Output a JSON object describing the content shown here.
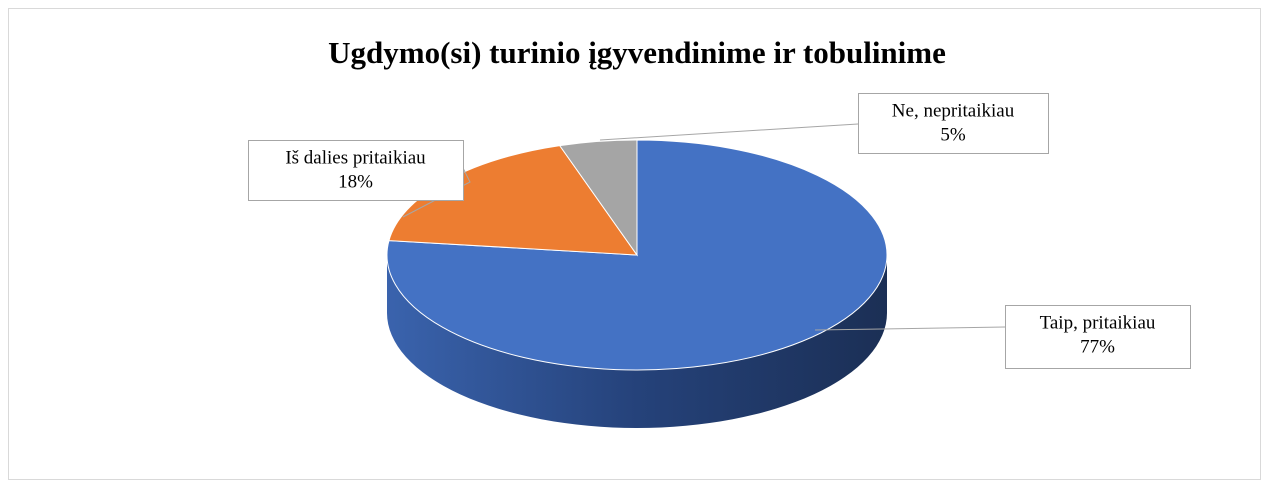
{
  "chart_data": {
    "type": "pie",
    "title": "Ugdymo(si)  turinio įgyvendinime ir tobulinime",
    "categories": [
      "Taip, pritaikiau",
      "Iš dalies pritaikiau",
      "Ne, nepritaikiau"
    ],
    "values": [
      77,
      18,
      5
    ],
    "value_labels": [
      "77%",
      "18%",
      "5%"
    ],
    "colors": [
      "#4472c4",
      "#ed7d31",
      "#a5a5a5"
    ]
  }
}
